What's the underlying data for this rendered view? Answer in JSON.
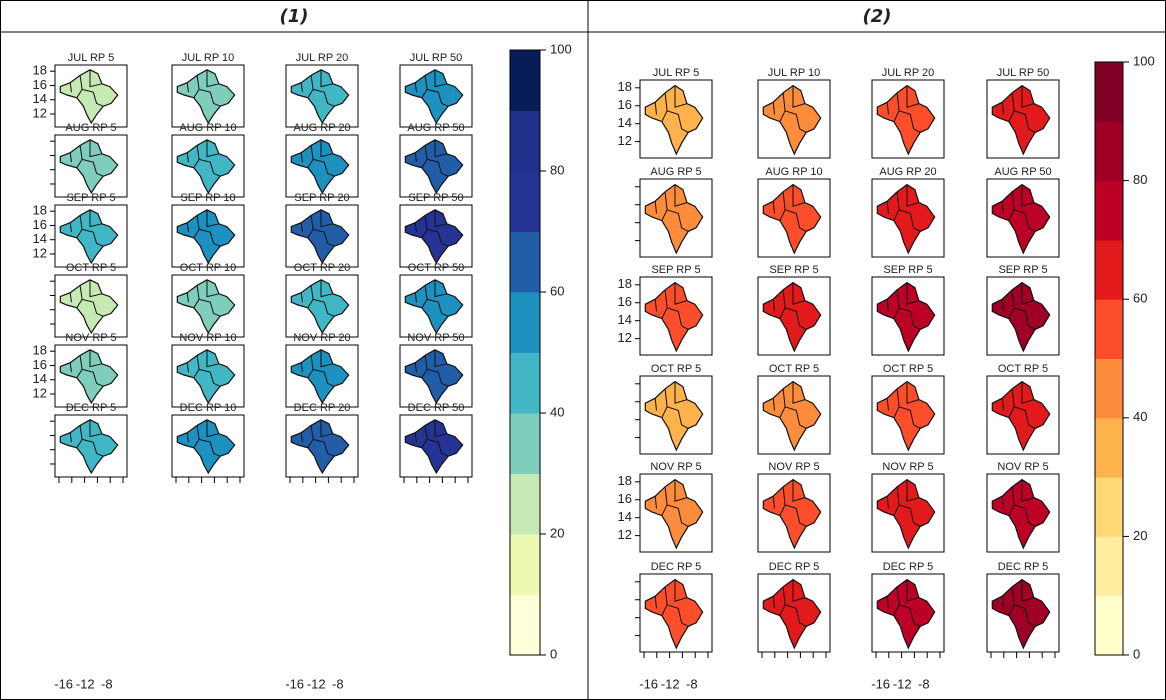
{
  "panels": [
    {
      "label": "(1)",
      "titles": [
        [
          "JUL RP 5",
          "JUL RP 10",
          "JUL RP 20",
          "JUL RP 50"
        ],
        [
          "AUG RP 5",
          "AUG RP 10",
          "AUG RP 20",
          "AUG RP 50"
        ],
        [
          "SEP RP 5",
          "SEP RP 10",
          "SEP RP 20",
          "SEP RP 50"
        ],
        [
          "OCT RP 5",
          "OCT RP 10",
          "OCT RP 20",
          "OCT RP 50"
        ],
        [
          "NOV RP 5",
          "NOV RP 10",
          "NOV RP 20",
          "NOV RP 50"
        ],
        [
          "DEC RP 5",
          "DEC RP 10",
          "DEC RP 20",
          "DEC RP 50"
        ]
      ],
      "yticks": [
        18,
        16,
        14,
        12
      ],
      "xticks": [
        -16,
        -12,
        -8
      ],
      "colorbar": {
        "lim": [
          0,
          100
        ],
        "ticks": [
          0,
          20,
          40,
          60,
          80,
          100
        ],
        "colors": [
          "#ffffd9",
          "#edf8b1",
          "#c7e9b4",
          "#7fcdbb",
          "#41b6c4",
          "#1d91c0",
          "#225ea8",
          "#253494",
          "#1f2f8a",
          "#081d58"
        ]
      }
    },
    {
      "label": "(2)",
      "titles": [
        [
          "JUL RP 5",
          "JUL RP 10",
          "JUL RP 20",
          "JUL RP 50"
        ],
        [
          "AUG RP 5",
          "AUG RP 10",
          "AUG RP 20",
          "AUG RP 50"
        ],
        [
          "SEP RP 5",
          "SEP RP 5",
          "SEP RP 5",
          "SEP RP 5"
        ],
        [
          "OCT RP 5",
          "OCT RP 5",
          "OCT RP 5",
          "OCT RP 5"
        ],
        [
          "NOV RP 5",
          "NOV RP 5",
          "NOV RP 5",
          "NOV RP 5"
        ],
        [
          "DEC RP 5",
          "DEC RP 5",
          "DEC RP 5",
          "DEC RP 5"
        ]
      ],
      "yticks": [
        18,
        16,
        14,
        12
      ],
      "xticks": [
        -16,
        -12,
        -8
      ],
      "colorbar": {
        "lim": [
          0,
          100
        ],
        "ticks": [
          0,
          20,
          40,
          60,
          80,
          100
        ],
        "colors": [
          "#ffffcc",
          "#ffeda0",
          "#fed976",
          "#feb24c",
          "#fd8d3c",
          "#fc4e2a",
          "#e31a1c",
          "#bd0026",
          "#a00026",
          "#800026"
        ]
      }
    }
  ]
}
